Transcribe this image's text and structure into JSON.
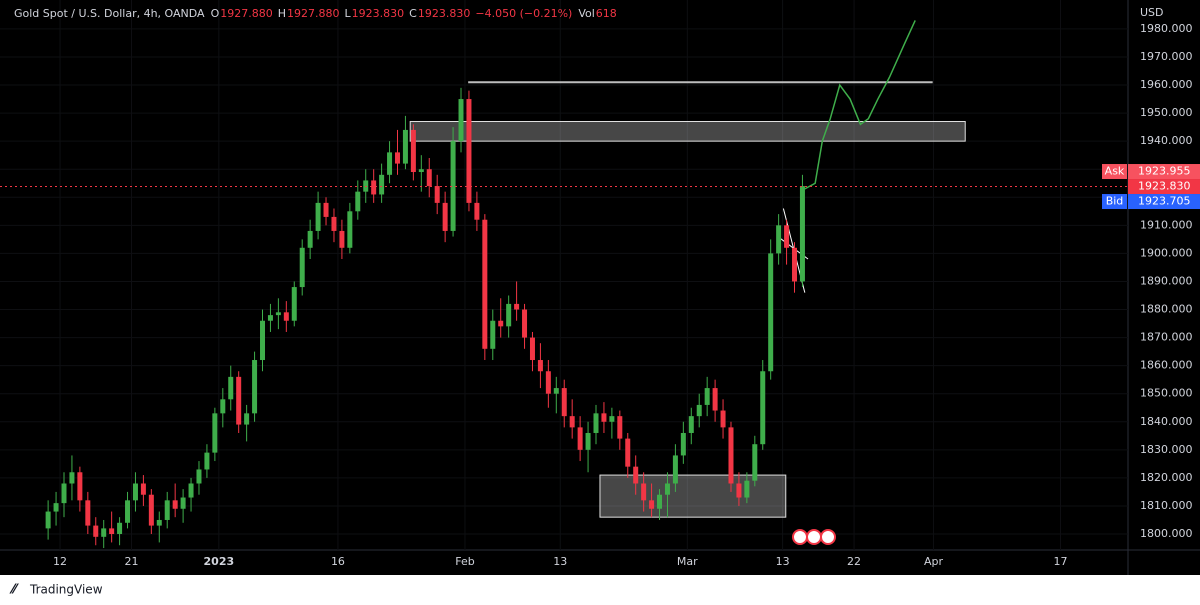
{
  "chart_data": {
    "type": "candlestick",
    "header": {
      "symbol": "Gold Spot / U.S. Dollar, 4h, OANDA",
      "ohlc": [
        {
          "label": "O",
          "value": "1927.880"
        },
        {
          "label": "H",
          "value": "1927.880"
        },
        {
          "label": "L",
          "value": "1923.830"
        },
        {
          "label": "C",
          "value": "1923.830"
        }
      ],
      "change": "−4.050 (−0.21%)",
      "volume": {
        "label": "Vol",
        "value": "618"
      }
    },
    "currency": "USD",
    "branding": "TradingView",
    "up_color": "#3fae4b",
    "down_color": "#f23645",
    "x": [
      -1.5,
      -0.5,
      0.5,
      1.5,
      2.5,
      3.5,
      4.5,
      5.5,
      6.5,
      7.5,
      8.5,
      9.5,
      10.5,
      11.5,
      12.5,
      13.5,
      14.5,
      15.5,
      16.5,
      17.5,
      18.5,
      19.5,
      20.5,
      21.5,
      22.5,
      23.5,
      24.5,
      25.5,
      26.5,
      27.5,
      28.5,
      29.5,
      30.5,
      31.5,
      32.5,
      33.5,
      34.5,
      35.5,
      36.5,
      37.5,
      38.5,
      39.5,
      40.5,
      41.5,
      42.5,
      43.5,
      44.5,
      45.5,
      46.5,
      47.5,
      48.5,
      49.5,
      50.5,
      51.5,
      52.5,
      53.5,
      54.5,
      55.5,
      56.5,
      57.5,
      58.5,
      59.5,
      60.5,
      61.5,
      62.5,
      63.5,
      64.5,
      65.5,
      66.5,
      67.5,
      68.5,
      69.5,
      70.5,
      71.5,
      72.5,
      73.5,
      74.5,
      75.5,
      76.5,
      77.5,
      78.5,
      79.5,
      80.5,
      81.5,
      82.5,
      83.5,
      84.5,
      85.5,
      86.5,
      87.5,
      88.5,
      89.5,
      90.5,
      91.5,
      92.5,
      93.5
    ],
    "open": [
      1802,
      1808,
      1811,
      1818,
      1822,
      1812,
      1803,
      1799,
      1802,
      1800,
      1804,
      1812,
      1818,
      1814,
      1803,
      1805,
      1812,
      1809,
      1813,
      1818,
      1823,
      1829,
      1843,
      1848,
      1856,
      1839,
      1843,
      1862,
      1876,
      1878,
      1879,
      1876,
      1888,
      1902,
      1908,
      1918,
      1913,
      1908,
      1902,
      1915,
      1922,
      1926,
      1921,
      1928,
      1936,
      1932,
      1944,
      1929,
      1930,
      1924,
      1918,
      1908,
      1940,
      1955,
      1918,
      1912,
      1866,
      1876,
      1874,
      1882,
      1880,
      1870,
      1862,
      1858,
      1850,
      1852,
      1842,
      1838,
      1830,
      1836,
      1843,
      1840,
      1842,
      1834,
      1824,
      1818,
      1812,
      1809,
      1814,
      1818,
      1828,
      1836,
      1842,
      1846,
      1852,
      1844,
      1838,
      1818,
      1813,
      1819,
      1832,
      1858,
      1900,
      1910,
      1902,
      1890
    ],
    "high": [
      1812,
      1815,
      1822,
      1828,
      1824,
      1815,
      1806,
      1805,
      1808,
      1806,
      1815,
      1822,
      1821,
      1816,
      1808,
      1815,
      1818,
      1816,
      1820,
      1826,
      1832,
      1845,
      1852,
      1860,
      1858,
      1846,
      1865,
      1880,
      1882,
      1884,
      1883,
      1890,
      1905,
      1912,
      1922,
      1920,
      1916,
      1912,
      1918,
      1926,
      1930,
      1930,
      1932,
      1940,
      1944,
      1949,
      1946,
      1935,
      1934,
      1928,
      1922,
      1945,
      1959,
      1958,
      1922,
      1914,
      1880,
      1884,
      1885,
      1890,
      1882,
      1872,
      1868,
      1862,
      1856,
      1855,
      1848,
      1842,
      1840,
      1846,
      1847,
      1845,
      1844,
      1836,
      1828,
      1822,
      1818,
      1816,
      1822,
      1832,
      1840,
      1845,
      1850,
      1856,
      1855,
      1848,
      1840,
      1822,
      1822,
      1835,
      1862,
      1905,
      1914,
      1912,
      1904,
      1928
    ],
    "low": [
      1798,
      1803,
      1806,
      1812,
      1808,
      1800,
      1796,
      1795,
      1797,
      1796,
      1802,
      1808,
      1810,
      1800,
      1797,
      1802,
      1806,
      1804,
      1808,
      1814,
      1820,
      1826,
      1838,
      1844,
      1836,
      1833,
      1840,
      1858,
      1872,
      1873,
      1872,
      1874,
      1885,
      1898,
      1905,
      1910,
      1904,
      1898,
      1900,
      1912,
      1918,
      1918,
      1918,
      1925,
      1928,
      1930,
      1926,
      1922,
      1920,
      1914,
      1904,
      1906,
      1936,
      1915,
      1908,
      1862,
      1862,
      1870,
      1870,
      1876,
      1866,
      1858,
      1852,
      1845,
      1843,
      1838,
      1834,
      1826,
      1822,
      1832,
      1836,
      1834,
      1830,
      1820,
      1814,
      1808,
      1806,
      1805,
      1806,
      1815,
      1825,
      1832,
      1838,
      1842,
      1840,
      1834,
      1815,
      1810,
      1811,
      1817,
      1830,
      1855,
      1896,
      1896,
      1886,
      1888
    ],
    "close": [
      1808,
      1811,
      1818,
      1822,
      1812,
      1803,
      1799,
      1802,
      1800,
      1804,
      1812,
      1818,
      1814,
      1803,
      1805,
      1812,
      1809,
      1813,
      1818,
      1823,
      1829,
      1843,
      1848,
      1856,
      1839,
      1843,
      1862,
      1876,
      1878,
      1879,
      1876,
      1888,
      1902,
      1908,
      1918,
      1913,
      1908,
      1902,
      1915,
      1922,
      1926,
      1921,
      1928,
      1936,
      1932,
      1944,
      1929,
      1930,
      1924,
      1918,
      1908,
      1940,
      1955,
      1918,
      1912,
      1866,
      1876,
      1874,
      1882,
      1880,
      1870,
      1862,
      1858,
      1850,
      1852,
      1842,
      1838,
      1830,
      1836,
      1843,
      1840,
      1842,
      1834,
      1824,
      1818,
      1812,
      1809,
      1814,
      1818,
      1828,
      1836,
      1842,
      1846,
      1852,
      1844,
      1838,
      1818,
      1813,
      1819,
      1832,
      1858,
      1900,
      1910,
      1902,
      1890,
      1924
    ],
    "xlim": [
      -7.56,
      134.5
    ],
    "ylim": [
      1794.3,
      1990.3
    ],
    "xticks": [
      {
        "value": 0,
        "label": "12"
      },
      {
        "value": 9,
        "label": "21"
      },
      {
        "value": 20,
        "label": "2023"
      },
      {
        "value": 35,
        "label": "16"
      },
      {
        "value": 51,
        "label": "Feb"
      },
      {
        "value": 63,
        "label": "13"
      },
      {
        "value": 79,
        "label": "Mar"
      },
      {
        "value": 91,
        "label": "13"
      },
      {
        "value": 100,
        "label": "22"
      },
      {
        "value": 110,
        "label": "Apr"
      },
      {
        "value": 126,
        "label": "17"
      }
    ],
    "yticks": [
      {
        "value": 1800,
        "label": "1800.000"
      },
      {
        "value": 1810,
        "label": "1810.000"
      },
      {
        "value": 1820,
        "label": "1820.000"
      },
      {
        "value": 1830,
        "label": "1830.000"
      },
      {
        "value": 1840,
        "label": "1840.000"
      },
      {
        "value": 1850,
        "label": "1850.000"
      },
      {
        "value": 1860,
        "label": "1860.000"
      },
      {
        "value": 1870,
        "label": "1870.000"
      },
      {
        "value": 1880,
        "label": "1880.000"
      },
      {
        "value": 1890,
        "label": "1890.000"
      },
      {
        "value": 1900,
        "label": "1900.000"
      },
      {
        "value": 1910,
        "label": "1910.000"
      },
      {
        "value": 1920,
        "label": "1920.000"
      },
      {
        "value": 1930,
        "label": "1930.000"
      },
      {
        "value": 1940,
        "label": "1940.000"
      },
      {
        "value": 1950,
        "label": "1950.000"
      },
      {
        "value": 1960,
        "label": "1960.000"
      },
      {
        "value": 1970,
        "label": "1970.000"
      },
      {
        "value": 1980,
        "label": "1980.000"
      }
    ],
    "grid": true,
    "last_price": {
      "value": 1923.83,
      "label": "1923.830"
    },
    "quotes": [
      {
        "name": "Ask",
        "value": 1923.955,
        "label": "1923.955",
        "color": "#f7525f"
      },
      {
        "name": "Bid",
        "value": 1923.705,
        "label": "1923.705",
        "color": "#2962ff"
      }
    ],
    "zones": [
      {
        "x": [
          44.1,
          114.0
        ],
        "y": [
          1940,
          1947
        ]
      },
      {
        "x": [
          68.0,
          91.4
        ],
        "y": [
          1806,
          1821
        ]
      }
    ],
    "levels": [
      {
        "x": [
          51.4,
          109.9
        ],
        "y": 1961
      }
    ],
    "trend_lines": [
      {
        "x": [
          91.1,
          93.8
        ],
        "y": [
          1916,
          1886
        ]
      },
      {
        "x": [
          90.4,
          94.2
        ],
        "y": [
          1906,
          1898
        ]
      }
    ],
    "forecast": {
      "color": "#3fae4b",
      "x": [
        93.8,
        95.1,
        96.0,
        97.0,
        98.2,
        99.5,
        100.8,
        101.8,
        103.0,
        104.5,
        106.4,
        107.7
      ],
      "y": [
        1923,
        1925,
        1940,
        1948,
        1960,
        1955,
        1946,
        1948,
        1955,
        1963,
        1975,
        1983
      ]
    }
  }
}
